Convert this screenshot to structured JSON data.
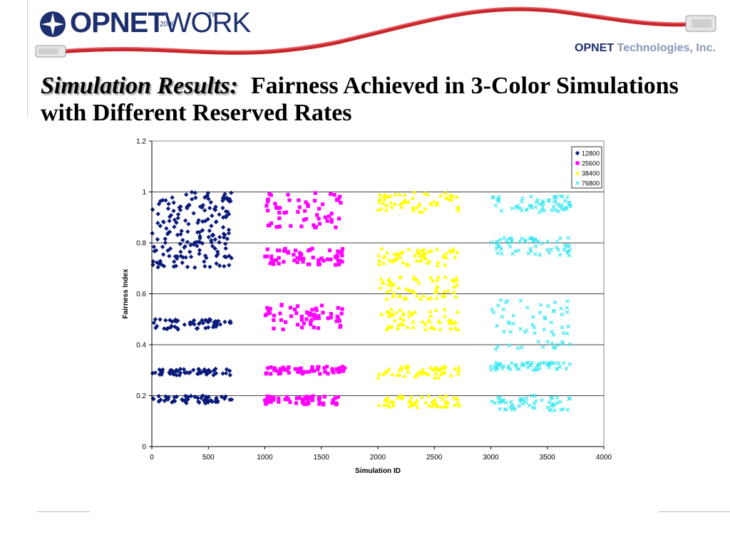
{
  "header": {
    "logo_main": "OPNET",
    "logo_secondary": "WORK",
    "logo_year": "2000",
    "logo_tm": "TM",
    "company_brand": "OPNET",
    "company_rest": " Technologies, Inc."
  },
  "title": {
    "italic_part": "Simulation Results:",
    "rest": "Fairness Achieved in 3-Color Simulations with Different Reserved Rates"
  },
  "colors": {
    "brand_navy": "#1d2f6e",
    "cable_red": "#c8262b",
    "s12800": "#0a1a7a",
    "s25600": "#ff00ff",
    "s38400": "#ffff00",
    "s76800": "#33e6f0"
  },
  "chart_data": {
    "type": "scatter",
    "xlabel": "Simulation ID",
    "ylabel": "Fairness Index",
    "xlim": [
      0,
      4000
    ],
    "ylim": [
      0,
      1.2
    ],
    "xticks": [
      0,
      500,
      1000,
      1500,
      2000,
      2500,
      3000,
      3500,
      4000
    ],
    "yticks": [
      0,
      0.2,
      0.4,
      0.6,
      0.8,
      1,
      1.2
    ],
    "grid": "horizontal",
    "legend_position": "top-right",
    "series": [
      {
        "name": "12800",
        "marker": "diamond",
        "color": "#0a1a7a",
        "x_range": [
          0,
          710
        ],
        "bands": [
          [
            0.17,
            0.2
          ],
          [
            0.28,
            0.305
          ],
          [
            0.46,
            0.5
          ],
          [
            0.7,
            0.8
          ],
          [
            0.8,
            0.9
          ],
          [
            0.9,
            1.0
          ]
        ]
      },
      {
        "name": "25600",
        "marker": "square",
        "color": "#ff00ff",
        "x_range": [
          1000,
          1710
        ],
        "bands": [
          [
            0.165,
            0.2
          ],
          [
            0.285,
            0.315
          ],
          [
            0.46,
            0.56
          ],
          [
            0.71,
            0.78
          ],
          [
            0.86,
            1.0
          ]
        ]
      },
      {
        "name": "38400",
        "marker": "triangle",
        "color": "#ffff00",
        "x_range": [
          2000,
          2720
        ],
        "bands": [
          [
            0.155,
            0.2
          ],
          [
            0.27,
            0.32
          ],
          [
            0.46,
            0.54
          ],
          [
            0.58,
            0.67
          ],
          [
            0.71,
            0.78
          ],
          [
            0.92,
            1.0
          ]
        ]
      },
      {
        "name": "76800",
        "marker": "x",
        "color": "#33e6f0",
        "x_range": [
          3000,
          3710
        ],
        "bands": [
          [
            0.14,
            0.2
          ],
          [
            0.3,
            0.33
          ],
          [
            0.38,
            0.58
          ],
          [
            0.75,
            0.82
          ],
          [
            0.92,
            0.99
          ]
        ]
      }
    ]
  }
}
